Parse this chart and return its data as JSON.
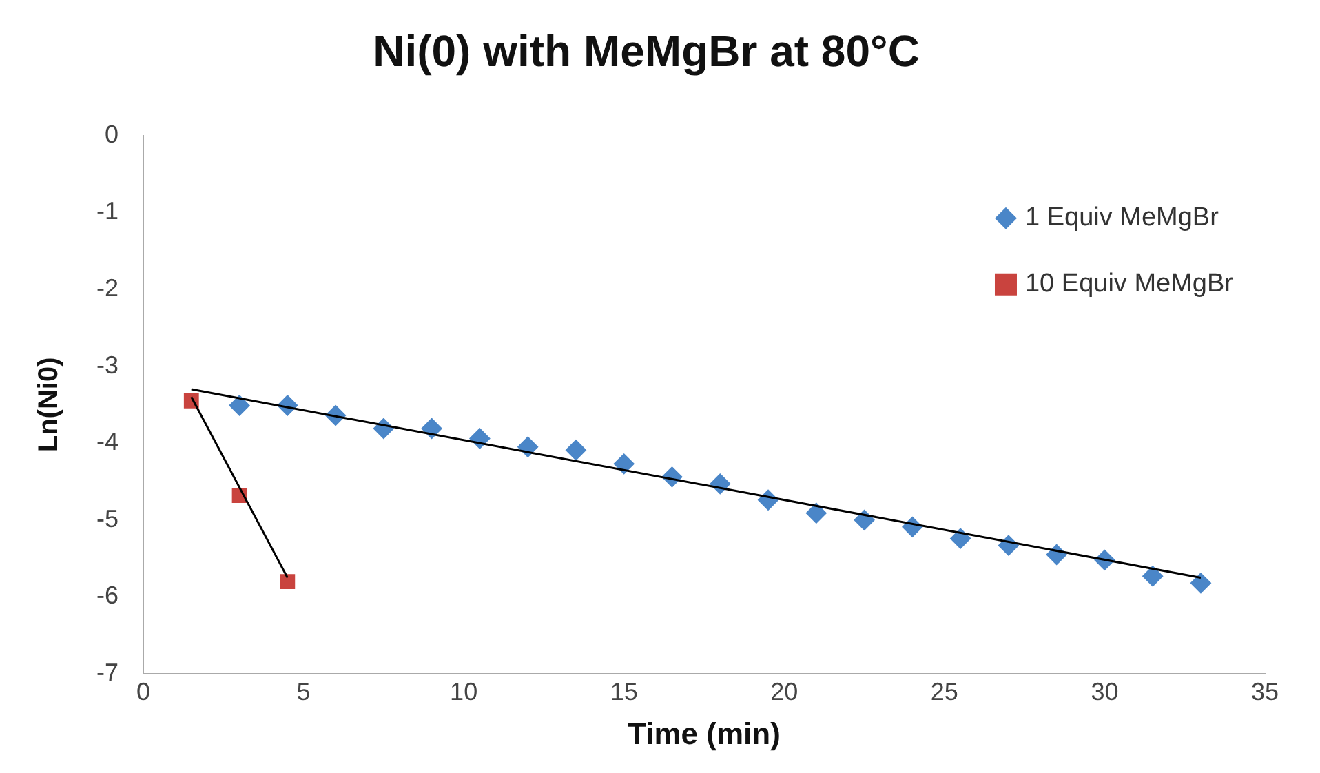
{
  "chart_data": {
    "type": "scatter",
    "title": "Ni(0) with MeMgBr at 80°C",
    "xlabel": "Time (min)",
    "ylabel": "Ln(Ni0)",
    "xlim": [
      0,
      35
    ],
    "xticks": [
      0,
      5,
      10,
      15,
      20,
      25,
      30,
      35
    ],
    "ylim": [
      -7,
      0
    ],
    "yticks": [
      -7,
      -6,
      -5,
      -4,
      -3,
      -2,
      -1,
      0
    ],
    "grid": false,
    "legend": "top right",
    "series": [
      {
        "name": "1 Equiv MeMgBr",
        "color": "#4a86c8",
        "marker": "diamond",
        "x": [
          3,
          4.5,
          6,
          7.5,
          9,
          10.5,
          12,
          13.5,
          15,
          16.5,
          18,
          19.5,
          21,
          22.5,
          24,
          25.5,
          27,
          28.5,
          30,
          31.5,
          33
        ],
        "values": [
          -3.51,
          -3.51,
          -3.64,
          -3.81,
          -3.81,
          -3.94,
          -4.05,
          -4.09,
          -4.27,
          -4.44,
          -4.53,
          -4.74,
          -4.91,
          -5.0,
          -5.09,
          -5.24,
          -5.33,
          -5.45,
          -5.52,
          -5.73,
          -5.82
        ]
      },
      {
        "name": "10 Equiv MeMgBr",
        "color": "#c9433e",
        "marker": "square",
        "x": [
          1.5,
          3,
          4.5
        ],
        "values": [
          -3.45,
          -4.68,
          -5.8
        ]
      },
      {
        "type": "line",
        "color": "#000000",
        "marker": "none",
        "x": [
          1.5,
          33
        ],
        "values": [
          -3.3,
          -5.75
        ]
      },
      {
        "type": "line",
        "color": "#000000",
        "marker": "none",
        "x": [
          1.5,
          4.5
        ],
        "values": [
          -3.4,
          -5.75
        ]
      }
    ]
  }
}
